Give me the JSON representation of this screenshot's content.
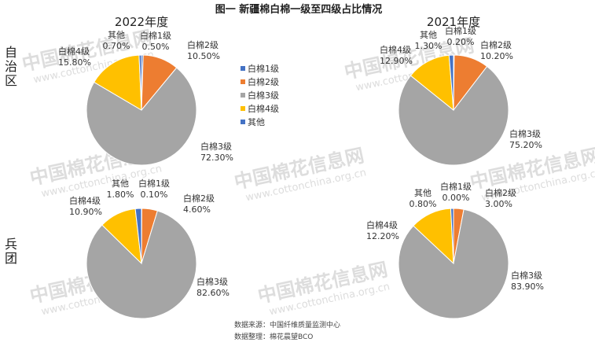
{
  "title": "图一  新疆棉白棉一级至四级占比情况",
  "column_titles": [
    "2022年度",
    "2021年度"
  ],
  "row_labels": [
    "自治区",
    "兵团"
  ],
  "legend": [
    "白棉1级",
    "白棉2级",
    "白棉3级",
    "白棉4级",
    "其他"
  ],
  "colors": {
    "白棉1级": "#4472c4",
    "白棉2级": "#ed7d31",
    "白棉3级": "#a5a5a5",
    "白棉4级": "#ffc000",
    "其他": "#4472c4"
  },
  "watermark": {
    "brand": "中国棉花信息网",
    "url": "www.cottonchina.org.cn"
  },
  "source_lines": [
    "数据来源：中国纤维质量监测中心",
    "数据整理：棉花晨望BCO"
  ],
  "chart_data": [
    {
      "type": "pie",
      "row": "自治区",
      "year": "2022年度",
      "slices": [
        {
          "name": "白棉1级",
          "value": 0.5,
          "label": "0.50%"
        },
        {
          "name": "白棉2级",
          "value": 10.5,
          "label": "10.50%"
        },
        {
          "name": "白棉3级",
          "value": 72.3,
          "label": "72.30%"
        },
        {
          "name": "白棉4级",
          "value": 15.8,
          "label": "15.80%"
        },
        {
          "name": "其他",
          "value": 0.7,
          "label": "0.70%"
        }
      ]
    },
    {
      "type": "pie",
      "row": "自治区",
      "year": "2021年度",
      "slices": [
        {
          "name": "白棉1级",
          "value": 0.2,
          "label": "0.20%"
        },
        {
          "name": "白棉2级",
          "value": 10.2,
          "label": "10.20%"
        },
        {
          "name": "白棉3级",
          "value": 75.2,
          "label": "75.20%"
        },
        {
          "name": "白棉4级",
          "value": 12.9,
          "label": "12.90%"
        },
        {
          "name": "其他",
          "value": 1.3,
          "label": "1.30%"
        }
      ]
    },
    {
      "type": "pie",
      "row": "兵团",
      "year": "2022年度",
      "slices": [
        {
          "name": "白棉1级",
          "value": 0.1,
          "label": "0.10%"
        },
        {
          "name": "白棉2级",
          "value": 4.6,
          "label": "4.60%"
        },
        {
          "name": "白棉3级",
          "value": 82.6,
          "label": "82.60%"
        },
        {
          "name": "白棉4级",
          "value": 10.9,
          "label": "10.90%"
        },
        {
          "name": "其他",
          "value": 1.8,
          "label": "1.80%"
        }
      ]
    },
    {
      "type": "pie",
      "row": "兵团",
      "year": "2021年度",
      "slices": [
        {
          "name": "白棉1级",
          "value": 0.0,
          "label": "0.00%"
        },
        {
          "name": "白棉2级",
          "value": 3.0,
          "label": "3.00%"
        },
        {
          "name": "白棉3级",
          "value": 83.9,
          "label": "83.90%"
        },
        {
          "name": "白棉4级",
          "value": 12.2,
          "label": "12.20%"
        },
        {
          "name": "其他",
          "value": 0.8,
          "label": "0.80%"
        }
      ]
    }
  ]
}
